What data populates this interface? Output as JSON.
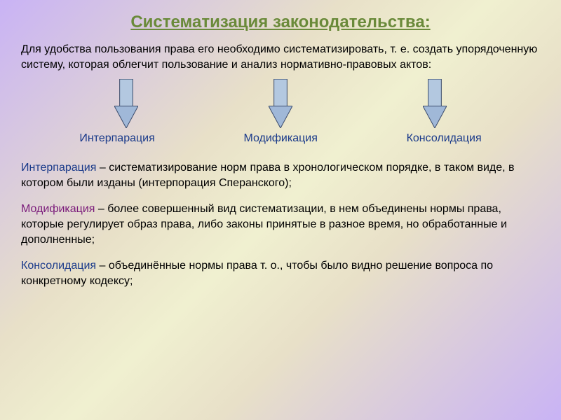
{
  "title": {
    "text": "Систематизация законодательства:",
    "color": "#6a8a3a",
    "fontsize": 24,
    "weight": "bold"
  },
  "intro": {
    "text": "Для удобства пользования права его необходимо систематизировать, т. е. создать упорядоченную систему, которая облегчит пользование и анализ нормативно-правовых актов:",
    "color": "#000000",
    "fontsize": 16
  },
  "arrows": {
    "count": 3,
    "body_fill": "#b3c8e0",
    "head_fill": "#a0b8d8",
    "stroke": "#3a4a6a",
    "width": 34,
    "height": 70
  },
  "labels": [
    {
      "text": "Интерпарация",
      "color": "#1a3a8a",
      "fontsize": 16
    },
    {
      "text": "Модификация",
      "color": "#1a3a8a",
      "fontsize": 16
    },
    {
      "text": "Консолидация",
      "color": "#1a3a8a",
      "fontsize": 16
    }
  ],
  "definitions": [
    {
      "term": "Интерпарация",
      "term_color": "#1a3a8a",
      "body": " – систематизирование норм права в хронологическом порядке, в таком виде, в котором были изданы (интерпорация Сперанского);",
      "body_color": "#000000",
      "fontsize": 16
    },
    {
      "term": "Модификация",
      "term_color": "#7a1a7a",
      "body": " – более совершенный вид систематизации, в нем объединены нормы права, которые регулирует образ права, либо законы принятые в разное время, но обработанные и дополненные;",
      "body_color": "#000000",
      "fontsize": 16
    },
    {
      "term": "Консолидация",
      "term_color": "#1a3a8a",
      "body": " – объединённые нормы права т. о., чтобы было видно решение вопроса по конкретному кодексу;",
      "body_color": "#000000",
      "fontsize": 16
    }
  ]
}
